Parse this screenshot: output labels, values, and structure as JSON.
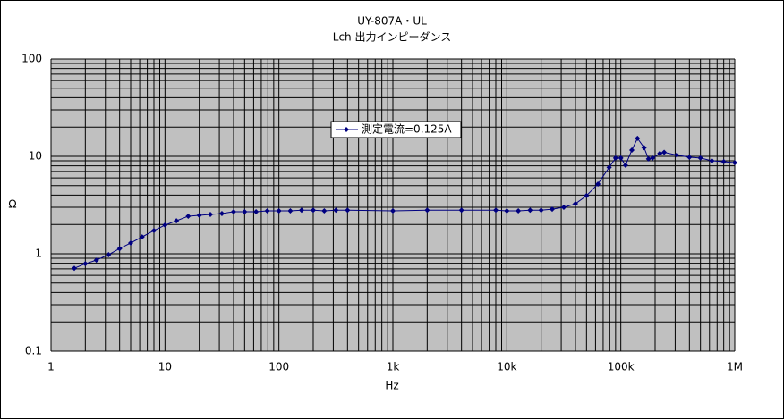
{
  "chart_data": {
    "type": "line",
    "title": "UY-807A・UL",
    "subtitle": "Lch 出力インピーダンス",
    "x_label": "Hz",
    "y_label": "Ω",
    "log_x": true,
    "log_y": true,
    "grid": true,
    "minor_grid": true,
    "legend": "top-center",
    "xlim": [
      1,
      1000000
    ],
    "ylim": [
      0.1,
      100
    ],
    "xticks": [
      1,
      10,
      100,
      {
        "value": 1000,
        "label": "1k"
      },
      {
        "value": 10000,
        "label": "10k"
      },
      {
        "value": 100000,
        "label": "100k"
      },
      {
        "value": 1000000,
        "label": "1M"
      }
    ],
    "yticks": [
      0.1,
      1,
      10,
      100
    ],
    "x": [
      1.6,
      2,
      2.5,
      3.2,
      4,
      5,
      6.3,
      8,
      10,
      12.6,
      16,
      20,
      25,
      31.6,
      40,
      50,
      63,
      79,
      100,
      126,
      158,
      200,
      250,
      316,
      400,
      1000,
      2000,
      4000,
      8000,
      10000,
      12600,
      16000,
      20000,
      25000,
      31600,
      40000,
      50000,
      63000,
      79000,
      90000,
      100000,
      110000,
      125000,
      140000,
      160000,
      175000,
      190000,
      220000,
      240000,
      310000,
      400000,
      500000,
      630000,
      800000,
      1000000
    ],
    "series": [
      {
        "name": "測定電流=0.125A",
        "color": "#000080",
        "values": [
          0.71,
          0.79,
          0.86,
          0.98,
          1.13,
          1.29,
          1.49,
          1.73,
          1.97,
          2.18,
          2.43,
          2.48,
          2.53,
          2.59,
          2.7,
          2.7,
          2.7,
          2.76,
          2.76,
          2.76,
          2.8,
          2.8,
          2.76,
          2.8,
          2.8,
          2.76,
          2.8,
          2.8,
          2.8,
          2.76,
          2.76,
          2.8,
          2.8,
          2.87,
          3.0,
          3.26,
          3.95,
          5.2,
          7.7,
          9.6,
          9.6,
          8.1,
          11.6,
          15.3,
          12.3,
          9.4,
          9.6,
          10.7,
          11,
          10.3,
          9.8,
          9.6,
          9.0,
          8.8,
          8.6
        ]
      }
    ]
  }
}
